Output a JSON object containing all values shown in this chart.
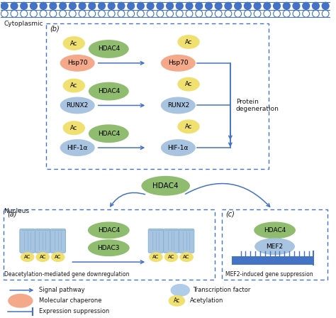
{
  "bg_color": "#ffffff",
  "membrane_color": "#4472c4",
  "dashed_box_color": "#4472c4",
  "hdac4_color": "#8fbc6e",
  "hsp70_color": "#f4a98a",
  "runx2_color": "#a8c4e0",
  "ac_color": "#f0e070",
  "mef2_color": "#a8c4e0",
  "hdac3_color": "#8fbc6e",
  "arrow_color": "#4472c4",
  "text_color": "#1a1a1a",
  "cytoplasmic_label": "Cytoplasmic",
  "nucleus_label": "Nucleus",
  "panel_b_label": "(b)",
  "panel_a_label": "(a)",
  "panel_c_label": "(c)",
  "protein_degen_label": "Protein\ndegeneration",
  "deacetylation_label": "Deacetylation-mediated gene downregulation",
  "mef2_suppression_label": "MEF2-induced gene suppression",
  "legend_signal": "Signal pathway",
  "legend_chaperone": "Molecular chaperone",
  "legend_expression": "Expression suppression",
  "legend_tf": "Transcription factor",
  "legend_ac": "Acetylation"
}
